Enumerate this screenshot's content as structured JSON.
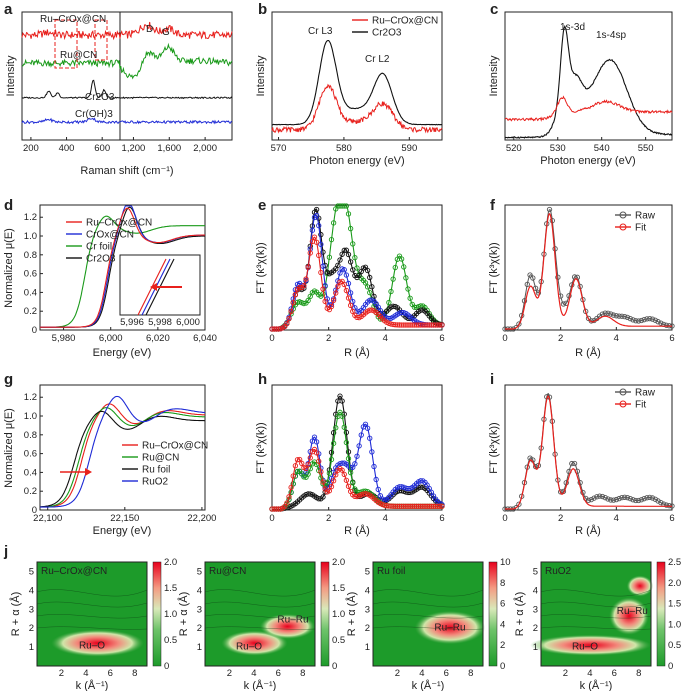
{
  "panels": {
    "a": {
      "label": "a",
      "xlabel": "Raman shift (cm⁻¹)",
      "ylabel": "Intensity",
      "xticks": [
        "200",
        "400",
        "600",
        "1,200",
        "1,600",
        "2,000"
      ],
      "peak_labels": [
        "D",
        "G"
      ],
      "series": [
        {
          "name": "Ru–CrOx@CN",
          "color": "#e8201c"
        },
        {
          "name": "Ru@CN",
          "color": "#1a9a1a"
        },
        {
          "name": "Cr2O3",
          "color": "#111111"
        },
        {
          "name": "Cr(OH)3",
          "color": "#1f2bd6"
        }
      ]
    },
    "b": {
      "label": "b",
      "xlabel": "Photon energy (eV)",
      "ylabel": "Intensity",
      "xticks": [
        "570",
        "580",
        "590"
      ],
      "peak_labels": [
        "Cr L3",
        "Cr L2"
      ],
      "legend": [
        {
          "name": "Ru–CrOx@CN",
          "color": "#e8201c"
        },
        {
          "name": "Cr2O3",
          "color": "#111111"
        }
      ]
    },
    "c": {
      "label": "c",
      "xlabel": "Photon energy (eV)",
      "ylabel": "Intensity",
      "xticks": [
        "520",
        "530",
        "540",
        "550"
      ],
      "peak_labels": [
        "1s-3d",
        "1s-4sp"
      ]
    },
    "d": {
      "label": "d",
      "xlabel": "Energy (eV)",
      "ylabel": "Normalized μ(E)",
      "xticks": [
        "5,980",
        "6,000",
        "6,020",
        "6,040"
      ],
      "yticks": [
        "0",
        "0.2",
        "0.4",
        "0.6",
        "0.8",
        "1.0",
        "1.2"
      ],
      "inset_xticks": [
        "5,996",
        "5,998",
        "6,000"
      ],
      "legend": [
        {
          "name": "Ru–CrOx@CN",
          "color": "#e8201c"
        },
        {
          "name": "CrOx@CN",
          "color": "#1f2bd6"
        },
        {
          "name": "Cr foil",
          "color": "#1a9a1a"
        },
        {
          "name": "Cr2O3",
          "color": "#111111"
        }
      ]
    },
    "e": {
      "label": "e",
      "xlabel": "R (Å)",
      "ylabel": "FT (k³χ(k))",
      "xticks": [
        "0",
        "2",
        "4",
        "6"
      ]
    },
    "f": {
      "label": "f",
      "xlabel": "R (Å)",
      "ylabel": "FT (k³χ(k))",
      "xticks": [
        "0",
        "2",
        "4",
        "6"
      ],
      "legend": [
        {
          "name": "Raw",
          "color": "#555555"
        },
        {
          "name": "Fit",
          "color": "#e8201c"
        }
      ]
    },
    "g": {
      "label": "g",
      "xlabel": "Energy (eV)",
      "ylabel": "Normalized μ(E)",
      "xticks": [
        "22,100",
        "22,150",
        "22,200"
      ],
      "yticks": [
        "0",
        "0.2",
        "0.4",
        "0.6",
        "0.8",
        "1.0",
        "1.2"
      ],
      "legend": [
        {
          "name": "Ru–CrOx@CN",
          "color": "#e8201c"
        },
        {
          "name": "Ru@CN",
          "color": "#1a9a1a"
        },
        {
          "name": "Ru foil",
          "color": "#111111"
        },
        {
          "name": "RuO2",
          "color": "#1f2bd6"
        }
      ]
    },
    "h": {
      "label": "h",
      "xlabel": "R (Å)",
      "ylabel": "FT (k³χ(k))",
      "xticks": [
        "0",
        "2",
        "4",
        "6"
      ]
    },
    "i": {
      "label": "i",
      "xlabel": "R (Å)",
      "ylabel": "FT (k³χ(k))",
      "xticks": [
        "0",
        "2",
        "4",
        "6"
      ],
      "legend": [
        {
          "name": "Raw",
          "color": "#555555"
        },
        {
          "name": "Fit",
          "color": "#e8201c"
        }
      ]
    },
    "j": {
      "label": "j",
      "xlabel": "k (Å⁻¹)",
      "ylabel": "R + α (Å)",
      "maps": [
        {
          "title": "Ru–CrOx@CN",
          "zmax": "2.0",
          "cbticks": [
            "2.0",
            "1.5",
            "1.0",
            "0.5",
            "0"
          ],
          "annotations": [
            "Ru–O"
          ]
        },
        {
          "title": "Ru@CN",
          "zmax": "2.0",
          "cbticks": [
            "2.0",
            "1.5",
            "1.0",
            "0.5",
            "0"
          ],
          "annotations": [
            "Ru–Ru",
            "Ru–O"
          ]
        },
        {
          "title": "Ru foil",
          "zmax": "10",
          "cbticks": [
            "10",
            "8",
            "6",
            "4",
            "2",
            "0"
          ],
          "annotations": [
            "Ru–Ru"
          ]
        },
        {
          "title": "RuO2",
          "zmax": "2.5",
          "cbticks": [
            "2.5",
            "2.0",
            "1.5",
            "1.0",
            "0.5",
            "0"
          ],
          "annotations": [
            "Ru–Ru",
            "Ru–O"
          ]
        }
      ],
      "kticks": [
        "2",
        "4",
        "6",
        "8"
      ],
      "rticks": [
        "1",
        "2",
        "3",
        "4",
        "5"
      ]
    }
  },
  "chart_data": [
    {
      "panel": "a",
      "type": "line",
      "x_range": [
        150,
        2300
      ],
      "series": [
        {
          "name": "Ru–CrOx@CN",
          "peaks": [
            1350,
            1590
          ]
        },
        {
          "name": "Ru@CN",
          "peaks": [
            1350,
            1590
          ]
        },
        {
          "name": "Cr2O3",
          "peaks": [
            300,
            350,
            550,
            610
          ]
        },
        {
          "name": "Cr(OH)3",
          "peaks": [
            300,
            540
          ]
        }
      ]
    },
    {
      "panel": "b",
      "type": "line",
      "x_range": [
        570,
        595
      ],
      "series": [
        {
          "name": "Ru–CrOx@CN",
          "peaks": [
            577.5,
            586
          ]
        },
        {
          "name": "Cr2O3",
          "peaks": [
            577.5,
            586
          ]
        }
      ]
    },
    {
      "panel": "c",
      "type": "line",
      "x_range": [
        518,
        556
      ],
      "series": [
        {
          "name": "Ru–CrOx@CN",
          "peaks": [
            531,
            541
          ]
        },
        {
          "name": "Cr2O3",
          "peaks": [
            531,
            541.5
          ]
        }
      ]
    },
    {
      "panel": "d",
      "type": "line",
      "x_range": [
        5970,
        6040
      ],
      "y_range": [
        0,
        1.3
      ],
      "series": [
        {
          "name": "Ru–CrOx@CN",
          "edge": 5998,
          "max": 1.28
        },
        {
          "name": "CrOx@CN",
          "edge": 5998.5,
          "max": 1.33
        },
        {
          "name": "Cr foil",
          "edge": 5989,
          "max": 1.22
        },
        {
          "name": "Cr2O3",
          "edge": 5999,
          "max": 1.3
        }
      ]
    },
    {
      "panel": "e",
      "type": "line",
      "x_range": [
        0,
        6
      ],
      "series": [
        {
          "name": "Ru–CrOx@CN",
          "peaks": [
            1.55,
            2.4
          ]
        },
        {
          "name": "CrOx@CN",
          "peaks": [
            1.55,
            2.5,
            3.5
          ]
        },
        {
          "name": "Cr foil",
          "peaks": [
            2.2,
            2.55,
            4.5
          ]
        },
        {
          "name": "Cr2O3",
          "peaks": [
            1.55,
            2.6,
            3.3
          ]
        }
      ]
    },
    {
      "panel": "f",
      "type": "line",
      "x_range": [
        0,
        6
      ],
      "series": [
        {
          "name": "Raw",
          "peaks": [
            1.6,
            2.55
          ]
        },
        {
          "name": "Fit",
          "peaks": [
            1.6,
            2.55
          ]
        }
      ]
    },
    {
      "panel": "g",
      "type": "line",
      "x_range": [
        22100,
        22200
      ],
      "y_range": [
        0,
        1.3
      ],
      "series": [
        {
          "name": "Ru–CrOx@CN",
          "edge": 22122,
          "max": 1.2
        },
        {
          "name": "Ru@CN",
          "edge": 22120,
          "max": 1.15
        },
        {
          "name": "Ru foil",
          "edge": 22117,
          "max": 1.12
        },
        {
          "name": "RuO2",
          "edge": 22127,
          "max": 1.25
        }
      ]
    },
    {
      "panel": "h",
      "type": "line",
      "x_range": [
        0,
        6
      ],
      "series": [
        {
          "name": "Ru–CrOx@CN",
          "peaks": [
            1.5,
            2.4
          ]
        },
        {
          "name": "Ru@CN",
          "peaks": [
            1.5,
            2.4
          ]
        },
        {
          "name": "Ru foil",
          "peaks": [
            2.4,
            4.5,
            5.3
          ]
        },
        {
          "name": "RuO2",
          "peaks": [
            1.5,
            3.3
          ]
        }
      ]
    },
    {
      "panel": "i",
      "type": "line",
      "x_range": [
        0,
        6
      ],
      "series": [
        {
          "name": "Raw",
          "peaks": [
            1.55,
            2.45
          ]
        },
        {
          "name": "Fit",
          "peaks": [
            1.55,
            2.45
          ]
        }
      ]
    },
    {
      "panel": "j",
      "type": "heatmap",
      "x_range": [
        0,
        9
      ],
      "y_range": [
        0,
        5.5
      ],
      "maps": [
        {
          "name": "Ru–CrOx@CN",
          "z_range": [
            0,
            2.0
          ]
        },
        {
          "name": "Ru@CN",
          "z_range": [
            0,
            2.0
          ]
        },
        {
          "name": "Ru foil",
          "z_range": [
            0,
            10
          ]
        },
        {
          "name": "RuO2",
          "z_range": [
            0,
            2.5
          ]
        }
      ]
    }
  ]
}
